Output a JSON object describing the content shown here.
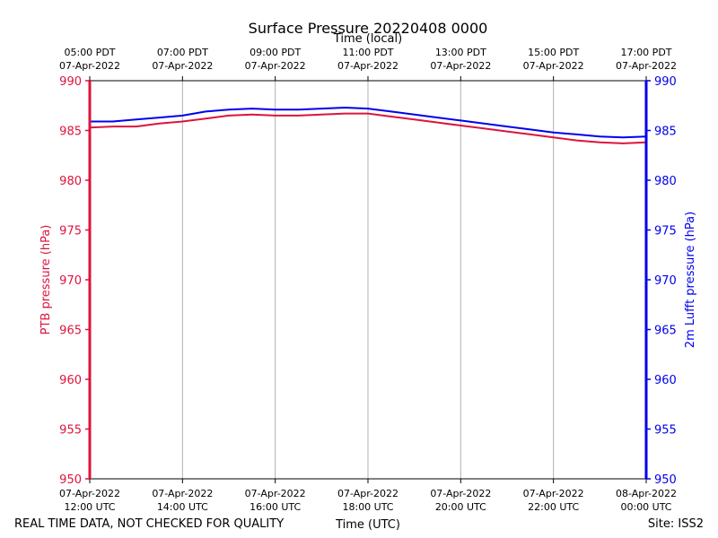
{
  "chart_data": {
    "type": "line",
    "title": "Surface Pressure 20220408 0000",
    "top_axis_label": "Time (local)",
    "xlabel": "Time (UTC)",
    "ylabel_left": "PTB pressure (hPa)",
    "ylabel_right": "2m Lufft pressure (hPa)",
    "footer_left": "REAL TIME DATA, NOT CHECKED FOR QUALITY",
    "footer_right": "Site: ISS2",
    "xlim": [
      12,
      24
    ],
    "ylim": [
      950,
      990
    ],
    "yticks": [
      950,
      955,
      960,
      965,
      970,
      975,
      980,
      985,
      990
    ],
    "grid_x": true,
    "xticks": [
      {
        "x": 12,
        "utc_time": "12:00 UTC",
        "utc_date": "07-Apr-2022",
        "local_time": "05:00 PDT",
        "local_date": "07-Apr-2022"
      },
      {
        "x": 14,
        "utc_time": "14:00 UTC",
        "utc_date": "07-Apr-2022",
        "local_time": "07:00 PDT",
        "local_date": "07-Apr-2022"
      },
      {
        "x": 16,
        "utc_time": "16:00 UTC",
        "utc_date": "07-Apr-2022",
        "local_time": "09:00 PDT",
        "local_date": "07-Apr-2022"
      },
      {
        "x": 18,
        "utc_time": "18:00 UTC",
        "utc_date": "07-Apr-2022",
        "local_time": "11:00 PDT",
        "local_date": "07-Apr-2022"
      },
      {
        "x": 20,
        "utc_time": "20:00 UTC",
        "utc_date": "07-Apr-2022",
        "local_time": "13:00 PDT",
        "local_date": "07-Apr-2022"
      },
      {
        "x": 22,
        "utc_time": "22:00 UTC",
        "utc_date": "07-Apr-2022",
        "local_time": "15:00 PDT",
        "local_date": "07-Apr-2022"
      },
      {
        "x": 24,
        "utc_time": "00:00 UTC",
        "utc_date": "08-Apr-2022",
        "local_time": "17:00 PDT",
        "local_date": "07-Apr-2022"
      }
    ],
    "series": [
      {
        "axis": "left",
        "color": "#dc143c",
        "x": [
          12,
          12.5,
          13,
          13.5,
          14,
          14.5,
          15,
          15.5,
          16,
          16.5,
          17,
          17.5,
          18,
          18.5,
          19,
          19.5,
          20,
          20.5,
          21,
          21.5,
          22,
          22.5,
          23,
          23.5,
          24
        ],
        "values": [
          985.3,
          985.4,
          985.4,
          985.7,
          985.9,
          986.2,
          986.5,
          986.6,
          986.5,
          986.5,
          986.6,
          986.7,
          986.7,
          986.4,
          986.1,
          985.8,
          985.5,
          985.2,
          984.9,
          984.6,
          984.3,
          984.0,
          983.8,
          983.7,
          983.8
        ]
      },
      {
        "axis": "right",
        "color": "#0000ee",
        "x": [
          12,
          12.5,
          13,
          13.5,
          14,
          14.5,
          15,
          15.5,
          16,
          16.5,
          17,
          17.5,
          18,
          18.5,
          19,
          19.5,
          20,
          20.5,
          21,
          21.5,
          22,
          22.5,
          23,
          23.5,
          24
        ],
        "values": [
          985.9,
          985.9,
          986.1,
          986.3,
          986.5,
          986.9,
          987.1,
          987.2,
          987.1,
          987.1,
          987.2,
          987.3,
          987.2,
          986.9,
          986.6,
          986.3,
          986.0,
          985.7,
          985.4,
          985.1,
          984.8,
          984.6,
          984.4,
          984.3,
          984.4
        ]
      }
    ]
  }
}
